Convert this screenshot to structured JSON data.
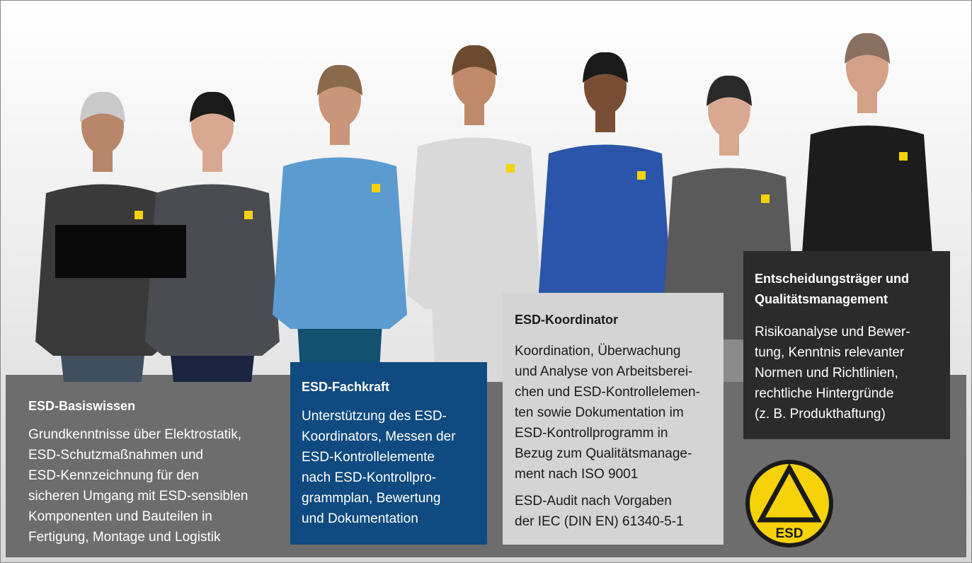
{
  "boxes": [
    {
      "title": [
        "ESD-Basiswissen"
      ],
      "lines": [
        "Grundkenntnisse über Elektrostatik,",
        "ESD-Schutzmaßnahmen und",
        "ESD-Kennzeichnung für den",
        "sicheren Umgang mit ESD-sensiblen",
        "Komponenten und Bauteilen in",
        "Fertigung, Montage und Logistik"
      ]
    },
    {
      "title": [
        "ESD-Fachkraft"
      ],
      "lines": [
        "Unterstützung des ESD-",
        "Koordinators, Messen der",
        "ESD-Kontrollelemente",
        "nach ESD-Kontrollpro-",
        "grammplan, Bewertung",
        "und Dokumentation"
      ]
    },
    {
      "title": [
        "ESD-Koordinator"
      ],
      "lines": [
        "Koordination, Überwachung",
        "und Analyse von Arbeitsberei-",
        "chen und ESD-Kontrollelemen-",
        "ten sowie Dokumentation im",
        "ESD-Kontrollprogramm in",
        "Bezug zum Qualitätsmanage-",
        "ment nach ISO 9001"
      ],
      "lines2": [
        "ESD-Audit nach Vorgaben",
        "der IEC (DIN EN) 61340-5-1"
      ]
    },
    {
      "title": [
        "Entscheidungsträger und",
        "Qualitätsmanagement"
      ],
      "lines": [
        "Risikoanalyse und Bewer-",
        "tung, Kenntnis relevanter",
        "Normen und Richtlinien,",
        "rechtliche Hintergründe",
        "(z. B. Produkthaftung)"
      ]
    }
  ],
  "logo": "ESD"
}
